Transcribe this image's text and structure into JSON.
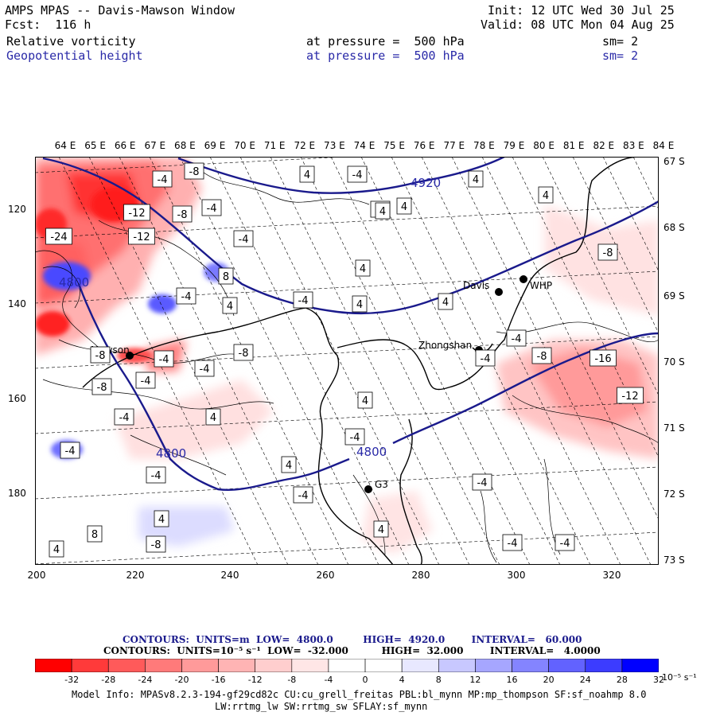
{
  "header": {
    "title": "AMPS MPAS -- Davis-Mawson Window",
    "fcst": "Fcst:  116 h",
    "init": "Init: 12 UTC Wed 30 Jul 25",
    "valid": "Valid: 08 UTC Mon 04 Aug 25",
    "field1_name": "Relative vorticity",
    "field1_pressure": "at pressure =  500 hPa",
    "field1_sm": "sm= 2",
    "field2_name": "Geopotential height",
    "field2_pressure": "at pressure =  500 hPa",
    "field2_sm": "sm= 2"
  },
  "map": {
    "top_longitudes": [
      "64 E",
      "65 E",
      "66 E",
      "67 E",
      "68 E",
      "69 E",
      "70 E",
      "71 E",
      "72 E",
      "73 E",
      "74 E",
      "75 E",
      "76 E",
      "77 E",
      "78 E",
      "79 E",
      "80 E",
      "81 E",
      "82 E",
      "83 E",
      "84 E"
    ],
    "right_latitudes": [
      "67 S",
      "68 S",
      "69 S",
      "70 S",
      "71 S",
      "72 S",
      "73 S"
    ],
    "y_axis_ticks": [
      "120",
      "140",
      "160",
      "180"
    ],
    "x_axis_ticks": [
      "200",
      "220",
      "240",
      "260",
      "280",
      "300",
      "320"
    ],
    "stations": [
      {
        "name": "Davis"
      },
      {
        "name": "WHP"
      },
      {
        "name": "Mawson"
      },
      {
        "name": "Zhongshan"
      },
      {
        "name": "G3"
      }
    ],
    "height_contour_labels": [
      "4920",
      "4800",
      "4800",
      "4800"
    ],
    "vorticity_box_labels": [
      "-4",
      "-8",
      "4",
      "-4",
      "4",
      "4",
      "-4",
      "4",
      "4",
      "-12",
      "-8",
      "-4",
      "-24",
      "-12",
      "-4",
      "8",
      "4",
      "4",
      "4",
      "-4",
      "4",
      "-8",
      "-4",
      "-8",
      "-8",
      "-4",
      "-4",
      "-8",
      "-16",
      "-12",
      "-4",
      "4",
      "4",
      "-4",
      "-8",
      "-4",
      "4",
      "-4",
      "4",
      "-4",
      "-4",
      "-4",
      "-8",
      "8",
      "4",
      "-4",
      "-4",
      "4",
      "-4",
      "-4"
    ]
  },
  "contours_info": {
    "line1_label": "CONTOURS:  UNITS=m  LOW=  4800.0         HIGH=  4920.0        INTERVAL=   60.000",
    "line2_label": "CONTOURS:  UNITS=10⁻⁵ s⁻¹  LOW=  -32.000          HIGH=  32.000        INTERVAL=   4.0000"
  },
  "colorbar": {
    "tick_labels": [
      "-32",
      "-28",
      "-24",
      "-20",
      "-16",
      "-12",
      "-8",
      "-4",
      "0",
      "4",
      "8",
      "12",
      "16",
      "20",
      "24",
      "28",
      "32"
    ],
    "units": "10⁻⁵ s⁻¹",
    "colors": [
      "#ff0000",
      "#ff3a3a",
      "#ff5a5a",
      "#ff7a7a",
      "#ff9a9a",
      "#ffb4b4",
      "#ffcece",
      "#ffe6e6",
      "#ffffff",
      "#ffffff",
      "#e8e8ff",
      "#c8c8ff",
      "#a6a6ff",
      "#8484ff",
      "#6262ff",
      "#3c3cff",
      "#0000ff"
    ]
  },
  "model_info": {
    "line1": "Model Info: MPASv8.2.3-194-gf29cd82c CU:cu_grell_freitas PBL:bl_mynn MP:mp_thompson SF:sf_noahmp 8.0",
    "line2": "LW:rrtmg_lw SW:rrtmg_sw SFLAY:sf_mynn"
  },
  "style": {
    "height_contour_color": "#1a1a8c",
    "blue_text": "#2a2aa8"
  }
}
